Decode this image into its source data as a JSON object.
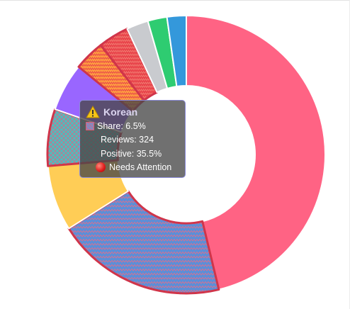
{
  "chart_data": {
    "type": "pie",
    "variant": "donut",
    "slices": [
      {
        "value": 45.5,
        "color": "#ff6384",
        "pattern": "none",
        "highlight": false
      },
      {
        "value": 19.5,
        "color": "#5b8fd8",
        "pattern": "zigzag",
        "highlight": true
      },
      {
        "value": 7.5,
        "color": "#ffcd56",
        "pattern": "none",
        "highlight": false
      },
      {
        "value": 6.5,
        "color": "#4bc0c0",
        "pattern": "diamond",
        "highlight": true
      },
      {
        "value": 5.5,
        "color": "#9966ff",
        "pattern": "none",
        "highlight": false
      },
      {
        "value": 3.5,
        "color": "#ff9f40",
        "pattern": "zigzag",
        "highlight": true
      },
      {
        "value": 3.5,
        "color": "#e8434a",
        "pattern": "zigzag",
        "highlight": true
      },
      {
        "value": 2.5,
        "color": "#c9cbcf",
        "pattern": "none",
        "highlight": false
      },
      {
        "value": 2.2,
        "color": "#2ecc71",
        "pattern": "none",
        "highlight": false
      },
      {
        "value": 2.2,
        "color": "#3498db",
        "pattern": "none",
        "highlight": false
      }
    ],
    "highlight_border_color": "#d0354a"
  },
  "tooltip": {
    "icon": "warning-icon",
    "title": "Korean",
    "share": "Share: 6.5%",
    "reviews": "Reviews: 324",
    "positive": "Positive: 35.5%",
    "status_icon": "red-circle-icon",
    "status": "Needs Attention"
  }
}
